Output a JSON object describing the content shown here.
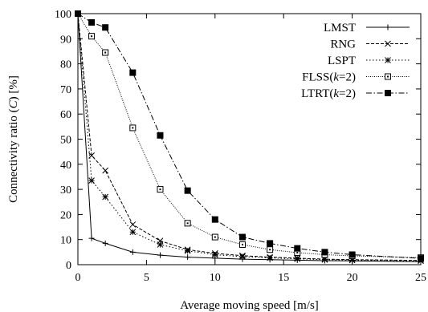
{
  "chart_data": {
    "type": "line",
    "title": "",
    "xlabel": "Average moving speed [m/s]",
    "ylabel_parts": [
      "Connectivity ratio (",
      "C",
      ") [%]"
    ],
    "xlim": [
      0,
      25
    ],
    "ylim": [
      0,
      100
    ],
    "xticks": [
      0,
      5,
      10,
      15,
      20,
      25
    ],
    "yticks": [
      0,
      10,
      20,
      30,
      40,
      50,
      60,
      70,
      80,
      90,
      100
    ],
    "grid": false,
    "legend_position": "top-right",
    "x": [
      0,
      1,
      2,
      4,
      6,
      8,
      10,
      12,
      14,
      16,
      18,
      20,
      25
    ],
    "series": [
      {
        "name_parts": [
          "LMST"
        ],
        "marker": "plus",
        "dash": "",
        "values": [
          100,
          10.5,
          8.5,
          5.0,
          3.8,
          3.0,
          2.6,
          2.2,
          2.0,
          1.8,
          1.6,
          1.5,
          1.2
        ]
      },
      {
        "name_parts": [
          "RNG"
        ],
        "marker": "cross",
        "dash": "4,2",
        "values": [
          100,
          43.5,
          37.5,
          16.0,
          9.5,
          6.0,
          4.5,
          3.6,
          3.0,
          2.6,
          2.2,
          2.0,
          1.7
        ]
      },
      {
        "name_parts": [
          "LSPT"
        ],
        "marker": "star",
        "dash": "1.5,2.5",
        "values": [
          100,
          33.5,
          27.0,
          13.0,
          8.0,
          5.5,
          4.0,
          3.2,
          2.7,
          2.3,
          2.0,
          1.8,
          1.5
        ]
      },
      {
        "name_parts": [
          "FLSS(",
          "k",
          "=2)"
        ],
        "marker": "square-open",
        "dash": "1,1.5",
        "values": [
          100,
          91.0,
          84.5,
          54.5,
          30.0,
          16.5,
          11.0,
          8.0,
          6.0,
          4.8,
          4.0,
          3.5,
          2.8
        ]
      },
      {
        "name_parts": [
          "LTRT(",
          "k",
          "=2)"
        ],
        "marker": "square-filled",
        "dash": "7,2.5,1.5,2.5",
        "values": [
          100,
          96.5,
          94.5,
          76.5,
          51.5,
          29.5,
          18.0,
          11.0,
          8.5,
          6.5,
          5.0,
          4.0,
          2.5
        ]
      }
    ]
  }
}
